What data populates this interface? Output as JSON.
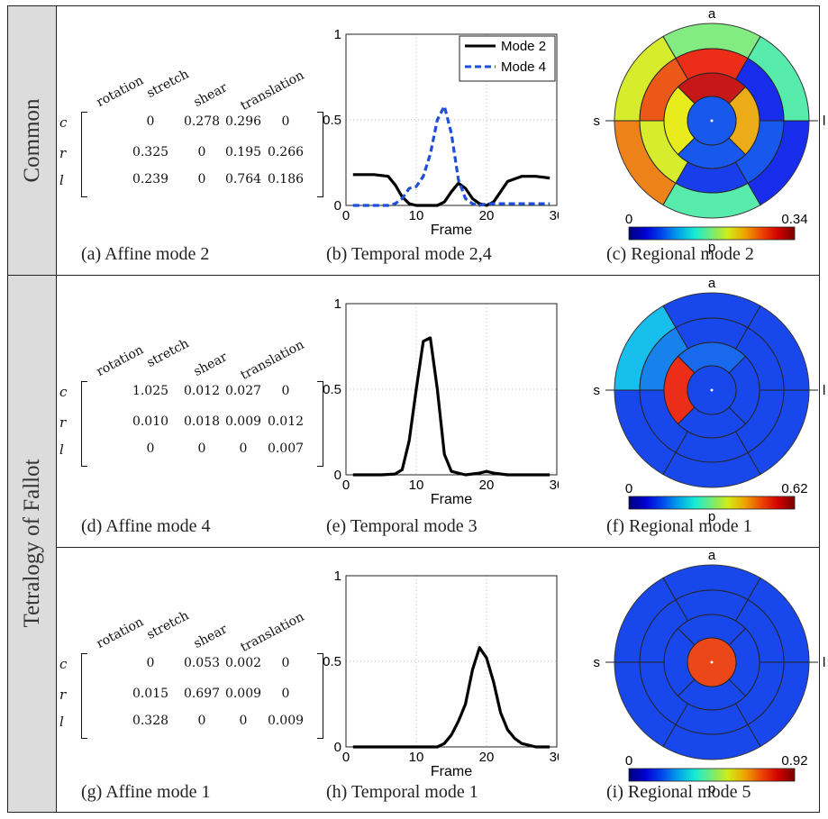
{
  "row_labels": [
    "Common",
    "Tetralogy of Fallot"
  ],
  "panels": [
    {
      "affine": {
        "column_headers": [
          "rotation",
          "stretch",
          "shear",
          "translation"
        ],
        "row_headers": [
          "c",
          "r",
          "l"
        ],
        "rows": [
          [
            "0",
            "0.278",
            "0.296",
            "0"
          ],
          [
            "0.325",
            "0",
            "0.195",
            "0.266"
          ],
          [
            "0.239",
            "0",
            "0.764",
            "0.186"
          ]
        ],
        "caption": "(a) Affine mode 2"
      },
      "temporal": {
        "caption": "(b) Temporal mode 2,4"
      },
      "regional": {
        "caption": "(c) Regional mode 2",
        "labels": {
          "top": "a",
          "left": "s",
          "right": "l"
        },
        "colorbar": {
          "min": "0",
          "max": "0.34",
          "label": "p"
        }
      }
    },
    {
      "affine": {
        "column_headers": [
          "rotation",
          "stretch",
          "shear",
          "translation"
        ],
        "row_headers": [
          "c",
          "r",
          "l"
        ],
        "rows": [
          [
            "1.025",
            "0.012",
            "0.027",
            "0"
          ],
          [
            "0.010",
            "0.018",
            "0.009",
            "0.012"
          ],
          [
            "0",
            "0",
            "0",
            "0.007"
          ]
        ],
        "caption": "(d) Affine mode 4"
      },
      "temporal": {
        "caption": "(e) Temporal mode 3"
      },
      "regional": {
        "caption": "(f) Regional mode 1",
        "labels": {
          "top": "a",
          "left": "s",
          "right": "l"
        },
        "colorbar": {
          "min": "0",
          "max": "0.62",
          "label": "p"
        }
      }
    },
    {
      "affine": {
        "column_headers": [
          "rotation",
          "stretch",
          "shear",
          "translation"
        ],
        "row_headers": [
          "c",
          "r",
          "l"
        ],
        "rows": [
          [
            "0",
            "0.053",
            "0.002",
            "0"
          ],
          [
            "0.015",
            "0.697",
            "0.009",
            "0"
          ],
          [
            "0.328",
            "0",
            "0",
            "0.009"
          ]
        ],
        "caption": "(g) Affine mode 1"
      },
      "temporal": {
        "caption": "(h) Temporal mode 1"
      },
      "regional": {
        "caption": "(i) Regional mode 5",
        "labels": {
          "top": "a",
          "left": "s",
          "right": "l"
        },
        "colorbar": {
          "min": "0",
          "max": "0.92",
          "label": "p"
        }
      }
    }
  ],
  "chart_data": [
    {
      "type": "line",
      "xlabel": "Frame",
      "xlim": [
        0,
        30
      ],
      "ylim": [
        0,
        1
      ],
      "xticks": [
        "0",
        "10",
        "20",
        "30"
      ],
      "yticks": [
        "0",
        "0.5",
        "1"
      ],
      "grid": true,
      "legend": "top-right",
      "series": [
        {
          "name": "Mode 2",
          "color": "#000000",
          "style": "solid",
          "x": [
            1,
            4,
            6,
            7,
            8,
            9,
            10,
            11,
            12,
            13,
            14,
            15,
            16,
            17,
            18,
            19,
            20,
            21,
            22,
            23,
            25,
            27,
            29
          ],
          "y": [
            0.18,
            0.18,
            0.17,
            0.12,
            0.05,
            0.01,
            0.0,
            0.0,
            0.0,
            0.0,
            0.02,
            0.08,
            0.13,
            0.1,
            0.04,
            0.01,
            0.0,
            0.02,
            0.08,
            0.14,
            0.17,
            0.17,
            0.16
          ]
        },
        {
          "name": "Mode 4",
          "color": "#1f4fd6",
          "style": "dashed",
          "x": [
            1,
            6,
            7,
            8,
            9,
            10,
            11,
            12,
            13,
            14,
            15,
            16,
            17,
            18,
            19,
            20,
            22,
            25,
            29
          ],
          "y": [
            0.0,
            0.0,
            0.01,
            0.04,
            0.1,
            0.11,
            0.17,
            0.3,
            0.5,
            0.58,
            0.42,
            0.15,
            0.04,
            0.01,
            0.0,
            0.01,
            0.01,
            0.01,
            0.01
          ]
        }
      ]
    },
    {
      "type": "line",
      "xlabel": "Frame",
      "xlim": [
        0,
        30
      ],
      "ylim": [
        0,
        1
      ],
      "xticks": [
        "0",
        "10",
        "20",
        "30"
      ],
      "yticks": [
        "0",
        "0.5",
        "1"
      ],
      "grid": true,
      "series": [
        {
          "color": "#000000",
          "style": "solid",
          "x": [
            1,
            5,
            7,
            8,
            9,
            10,
            11,
            12,
            13,
            14,
            15,
            17,
            19,
            20,
            21,
            23,
            29
          ],
          "y": [
            0.0,
            0.0,
            0.005,
            0.03,
            0.2,
            0.5,
            0.78,
            0.8,
            0.5,
            0.12,
            0.02,
            0.0,
            0.01,
            0.02,
            0.01,
            0.0,
            0.0
          ]
        }
      ]
    },
    {
      "type": "line",
      "xlabel": "Frame",
      "xlim": [
        0,
        30
      ],
      "ylim": [
        0,
        1
      ],
      "xticks": [
        "0",
        "10",
        "20",
        "30"
      ],
      "yticks": [
        "0",
        "0.5",
        "1"
      ],
      "grid": true,
      "series": [
        {
          "color": "#000000",
          "style": "solid",
          "x": [
            1,
            5,
            10,
            13,
            14,
            15,
            16,
            17,
            18,
            19,
            20,
            21,
            22,
            23,
            24,
            25,
            26,
            27,
            29
          ],
          "y": [
            0.0,
            0.0,
            0.0,
            0.0,
            0.02,
            0.07,
            0.15,
            0.25,
            0.45,
            0.58,
            0.52,
            0.38,
            0.2,
            0.1,
            0.05,
            0.02,
            0.01,
            0.0,
            0.0
          ]
        }
      ]
    }
  ],
  "bullseyes": [
    {
      "colorbar": "jet",
      "rings": [
        {
          "level": "basal",
          "segments": [
            0.5,
            0.6,
            0.75,
            0.45,
            0.15,
            0.45
          ]
        },
        {
          "level": "mid",
          "segments": [
            0.85,
            0.8,
            0.6,
            0.17,
            0.2,
            0.15
          ]
        },
        {
          "level": "apical",
          "segments": [
            0.92,
            0.62,
            0.2,
            0.7
          ]
        },
        {
          "level": "apex",
          "segments": [
            0.2
          ]
        }
      ]
    },
    {
      "colorbar": "jet",
      "rings": [
        {
          "level": "basal",
          "segments": [
            0.18,
            0.32,
            0.18,
            0.18,
            0.18,
            0.18
          ]
        },
        {
          "level": "mid",
          "segments": [
            0.18,
            0.25,
            0.18,
            0.18,
            0.18,
            0.18
          ]
        },
        {
          "level": "apical",
          "segments": [
            0.22,
            0.85,
            0.18,
            0.18
          ]
        },
        {
          "level": "apex",
          "segments": [
            0.18
          ]
        }
      ]
    },
    {
      "colorbar": "jet",
      "rings": [
        {
          "level": "basal",
          "segments": [
            0.18,
            0.18,
            0.18,
            0.18,
            0.18,
            0.18
          ]
        },
        {
          "level": "mid",
          "segments": [
            0.18,
            0.18,
            0.18,
            0.18,
            0.18,
            0.18
          ]
        },
        {
          "level": "apical",
          "segments": [
            0.18,
            0.18,
            0.18,
            0.18
          ]
        },
        {
          "level": "apex",
          "segments": [
            0.82
          ]
        }
      ]
    }
  ]
}
